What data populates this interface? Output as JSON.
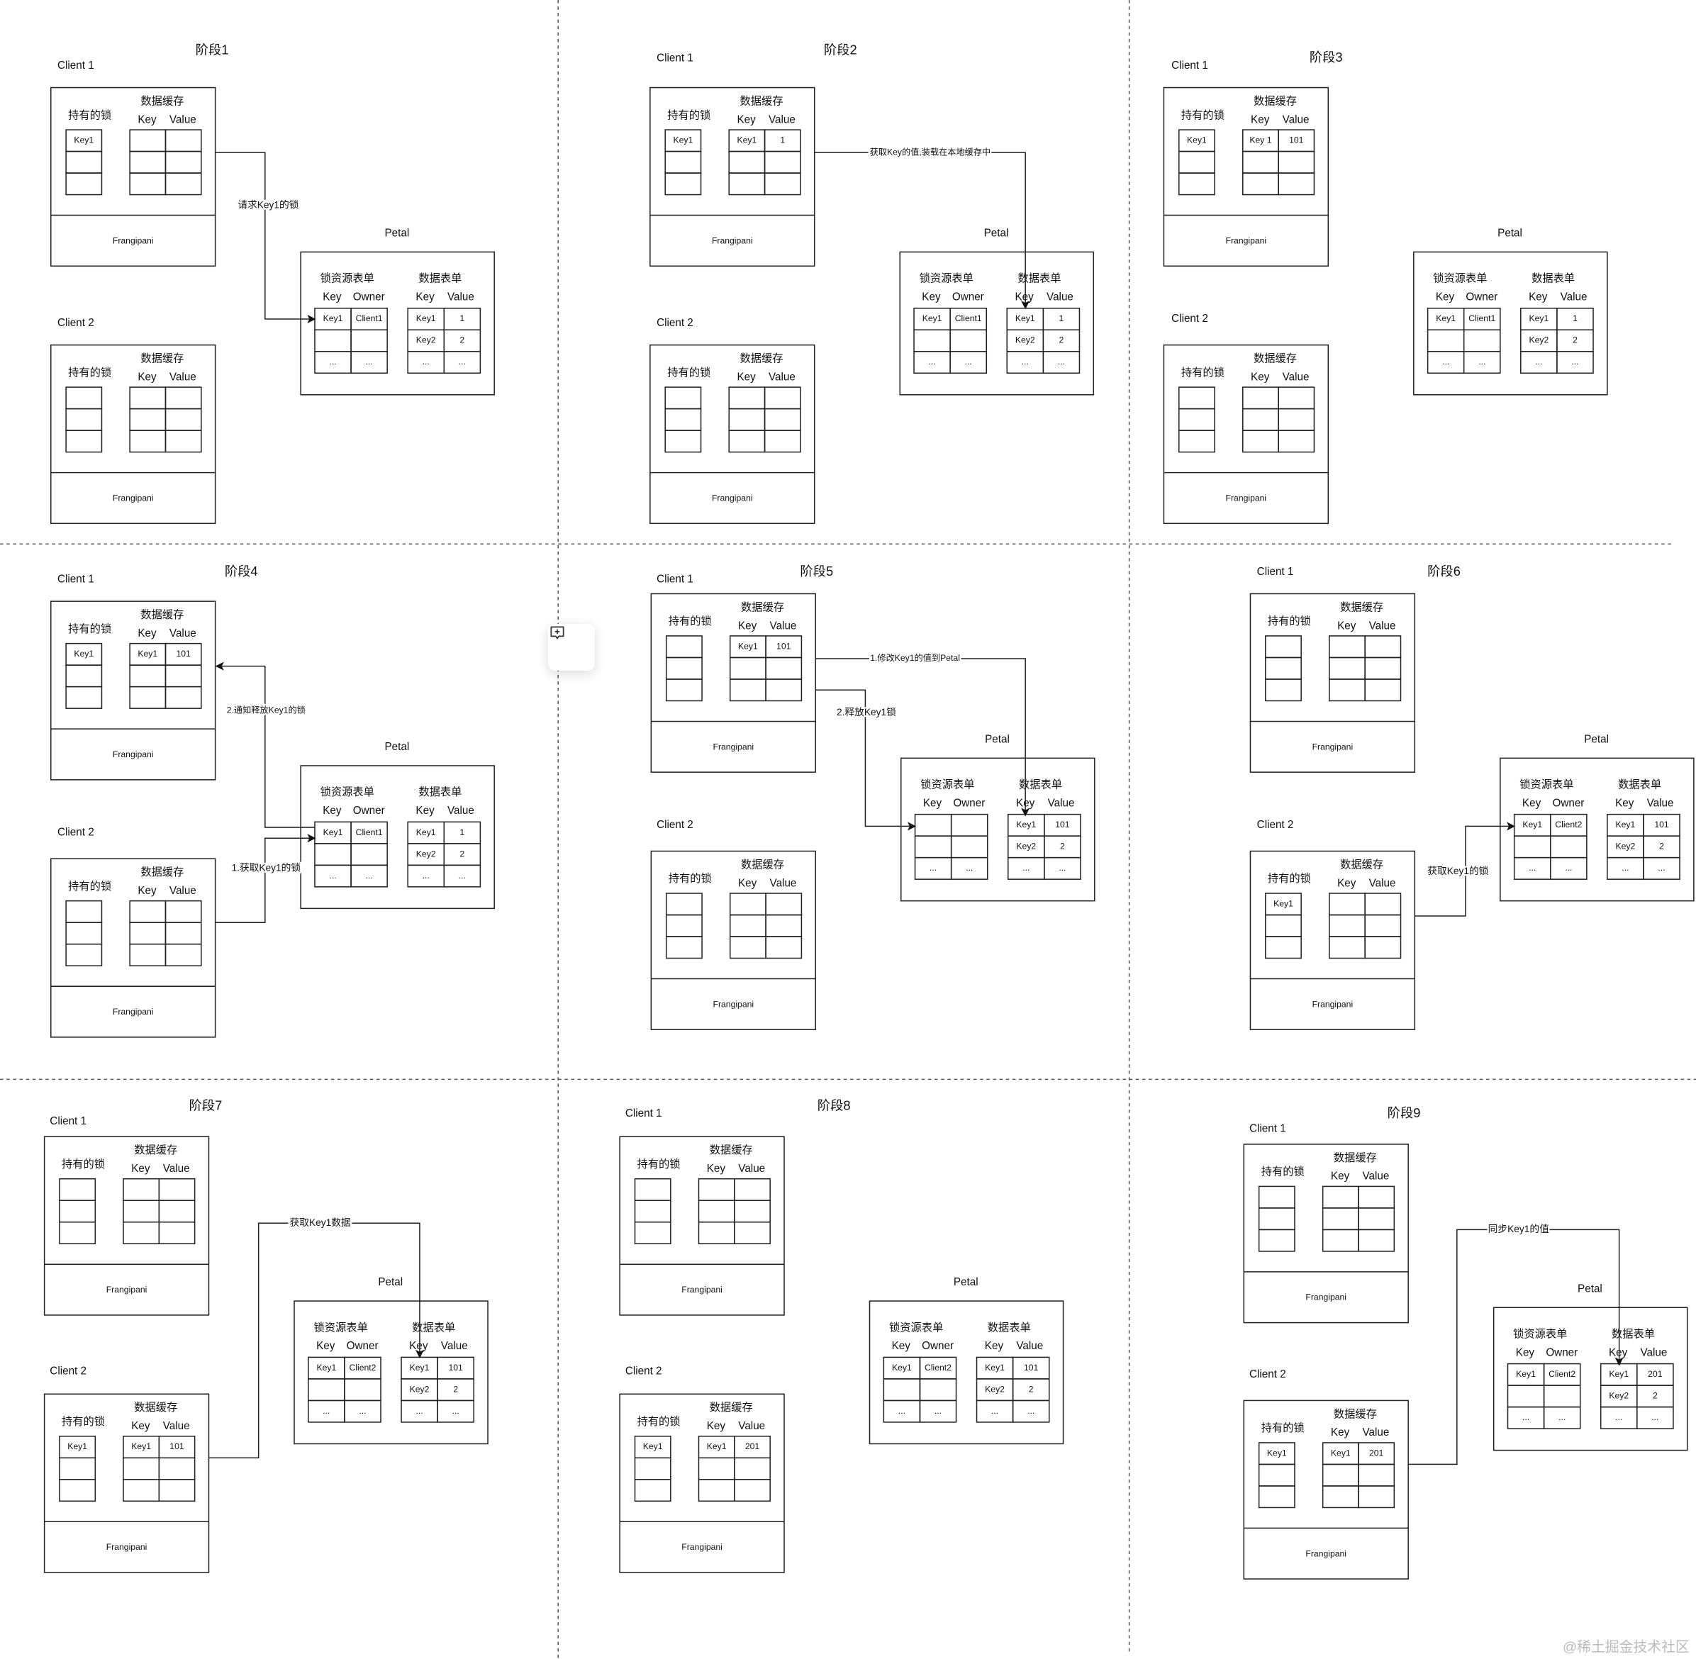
{
  "labels": {
    "locks_header": "持有的锁",
    "cache_header": "数据缓存",
    "key": "Key",
    "value": "Value",
    "owner": "Owner",
    "lock_table": "锁资源表单",
    "data_table": "数据表单",
    "frangipani": "Frangipani",
    "petal": "Petal"
  },
  "stages": [
    {
      "title": "阶段1",
      "client1": {
        "label": "Client 1",
        "locks": [
          "Key1",
          "",
          ""
        ],
        "cache": [
          [
            "",
            ""
          ],
          [
            "",
            ""
          ],
          [
            "",
            ""
          ]
        ]
      },
      "client2": {
        "label": "Client 2",
        "locks": [
          "",
          "",
          ""
        ],
        "cache": [
          [
            "",
            ""
          ],
          [
            "",
            ""
          ],
          [
            "",
            ""
          ]
        ]
      },
      "petal": {
        "locks": [
          [
            "Key1",
            "Client1"
          ],
          [
            "",
            ""
          ],
          [
            "...",
            "..."
          ]
        ],
        "data": [
          [
            "Key1",
            "1"
          ],
          [
            "Key2",
            "2"
          ],
          [
            "...",
            "..."
          ]
        ]
      },
      "arrows": [
        "请求Key1的锁"
      ]
    },
    {
      "title": "阶段2",
      "client1": {
        "label": "Client 1",
        "locks": [
          "Key1",
          "",
          ""
        ],
        "cache": [
          [
            "Key1",
            "1"
          ],
          [
            "",
            ""
          ],
          [
            "",
            ""
          ]
        ]
      },
      "client2": {
        "label": "Client 2",
        "locks": [
          "",
          "",
          ""
        ],
        "cache": [
          [
            "",
            ""
          ],
          [
            "",
            ""
          ],
          [
            "",
            ""
          ]
        ]
      },
      "petal": {
        "locks": [
          [
            "Key1",
            "Client1"
          ],
          [
            "",
            ""
          ],
          [
            "...",
            "..."
          ]
        ],
        "data": [
          [
            "Key1",
            "1"
          ],
          [
            "Key2",
            "2"
          ],
          [
            "...",
            "..."
          ]
        ]
      },
      "arrows": [
        "获取Key的值,装载在本地缓存中"
      ]
    },
    {
      "title": "阶段3",
      "client1": {
        "label": "Client 1",
        "locks": [
          "Key1",
          "",
          ""
        ],
        "cache": [
          [
            "Key 1",
            "101"
          ],
          [
            "",
            ""
          ],
          [
            "",
            ""
          ]
        ]
      },
      "client2": {
        "label": "Client 2",
        "locks": [
          "",
          "",
          ""
        ],
        "cache": [
          [
            "",
            ""
          ],
          [
            "",
            ""
          ],
          [
            "",
            ""
          ]
        ]
      },
      "petal": {
        "locks": [
          [
            "Key1",
            "Client1"
          ],
          [
            "",
            ""
          ],
          [
            "...",
            "..."
          ]
        ],
        "data": [
          [
            "Key1",
            "1"
          ],
          [
            "Key2",
            "2"
          ],
          [
            "...",
            "..."
          ]
        ]
      },
      "arrows": []
    },
    {
      "title": "阶段4",
      "client1": {
        "label": "Client 1",
        "locks": [
          "Key1",
          "",
          ""
        ],
        "cache": [
          [
            "Key1",
            "101"
          ],
          [
            "",
            ""
          ],
          [
            "",
            ""
          ]
        ]
      },
      "client2": {
        "label": "Client 2",
        "locks": [
          "",
          "",
          ""
        ],
        "cache": [
          [
            "",
            ""
          ],
          [
            "",
            ""
          ],
          [
            "",
            ""
          ]
        ]
      },
      "petal": {
        "locks": [
          [
            "Key1",
            "Client1"
          ],
          [
            "",
            ""
          ],
          [
            "...",
            "..."
          ]
        ],
        "data": [
          [
            "Key1",
            "1"
          ],
          [
            "Key2",
            "2"
          ],
          [
            "...",
            "..."
          ]
        ]
      },
      "arrows": [
        "2.通知释放Key1的锁",
        "1.获取Key1的锁"
      ]
    },
    {
      "title": "阶段5",
      "client1": {
        "label": "Client 1",
        "locks": [
          "",
          "",
          ""
        ],
        "cache": [
          [
            "Key1",
            "101"
          ],
          [
            "",
            ""
          ],
          [
            "",
            ""
          ]
        ]
      },
      "client2": {
        "label": "Client 2",
        "locks": [
          "",
          "",
          ""
        ],
        "cache": [
          [
            "",
            ""
          ],
          [
            "",
            ""
          ],
          [
            "",
            ""
          ]
        ]
      },
      "petal": {
        "locks": [
          [
            "",
            ""
          ],
          [
            "",
            ""
          ],
          [
            "...",
            "..."
          ]
        ],
        "data": [
          [
            "Key1",
            "101"
          ],
          [
            "Key2",
            "2"
          ],
          [
            "...",
            "..."
          ]
        ]
      },
      "arrows": [
        "1.修改Key1的值到Petal",
        "2.释放Key1锁"
      ]
    },
    {
      "title": "阶段6",
      "client1": {
        "label": "Client 1",
        "locks": [
          "",
          "",
          ""
        ],
        "cache": [
          [
            "",
            ""
          ],
          [
            "",
            ""
          ],
          [
            "",
            ""
          ]
        ]
      },
      "client2": {
        "label": "Client 2",
        "locks": [
          "Key1",
          "",
          ""
        ],
        "cache": [
          [
            "",
            ""
          ],
          [
            "",
            ""
          ],
          [
            "",
            ""
          ]
        ]
      },
      "petal": {
        "locks": [
          [
            "Key1",
            "Client2"
          ],
          [
            "",
            ""
          ],
          [
            "...",
            "..."
          ]
        ],
        "data": [
          [
            "Key1",
            "101"
          ],
          [
            "Key2",
            "2"
          ],
          [
            "...",
            "..."
          ]
        ]
      },
      "arrows": [
        "获取Key1的锁"
      ]
    },
    {
      "title": "阶段7",
      "client1": {
        "label": "Client 1",
        "locks": [
          "",
          "",
          ""
        ],
        "cache": [
          [
            "",
            ""
          ],
          [
            "",
            ""
          ],
          [
            "",
            ""
          ]
        ]
      },
      "client2": {
        "label": "Client 2",
        "locks": [
          "Key1",
          "",
          ""
        ],
        "cache": [
          [
            "Key1",
            "101"
          ],
          [
            "",
            ""
          ],
          [
            "",
            ""
          ]
        ]
      },
      "petal": {
        "locks": [
          [
            "Key1",
            "Client2"
          ],
          [
            "",
            ""
          ],
          [
            "...",
            "..."
          ]
        ],
        "data": [
          [
            "Key1",
            "101"
          ],
          [
            "Key2",
            "2"
          ],
          [
            "...",
            "..."
          ]
        ]
      },
      "arrows": [
        "获取Key1数据"
      ]
    },
    {
      "title": "阶段8",
      "client1": {
        "label": "Client 1",
        "locks": [
          "",
          "",
          ""
        ],
        "cache": [
          [
            "",
            ""
          ],
          [
            "",
            ""
          ],
          [
            "",
            ""
          ]
        ]
      },
      "client2": {
        "label": "Client 2",
        "locks": [
          "Key1",
          "",
          ""
        ],
        "cache": [
          [
            "Key1",
            "201"
          ],
          [
            "",
            ""
          ],
          [
            "",
            ""
          ]
        ]
      },
      "petal": {
        "locks": [
          [
            "Key1",
            "Client2"
          ],
          [
            "",
            ""
          ],
          [
            "...",
            "..."
          ]
        ],
        "data": [
          [
            "Key1",
            "101"
          ],
          [
            "Key2",
            "2"
          ],
          [
            "...",
            "..."
          ]
        ]
      },
      "arrows": []
    },
    {
      "title": "阶段9",
      "client1": {
        "label": "Client 1",
        "locks": [
          "",
          "",
          ""
        ],
        "cache": [
          [
            "",
            ""
          ],
          [
            "",
            ""
          ],
          [
            "",
            ""
          ]
        ]
      },
      "client2": {
        "label": "Client 2",
        "locks": [
          "Key1",
          "",
          ""
        ],
        "cache": [
          [
            "Key1",
            "201"
          ],
          [
            "",
            ""
          ],
          [
            "",
            ""
          ]
        ]
      },
      "petal": {
        "locks": [
          [
            "Key1",
            "Client2"
          ],
          [
            "",
            ""
          ],
          [
            "...",
            "..."
          ]
        ],
        "data": [
          [
            "Key1",
            "201"
          ],
          [
            "Key2",
            "2"
          ],
          [
            "...",
            "..."
          ]
        ]
      },
      "arrows": [
        "同步Key1的值"
      ]
    }
  ],
  "watermark": "@稀土掘金技术社区",
  "overlay": {
    "icon": "add-comment-icon"
  }
}
